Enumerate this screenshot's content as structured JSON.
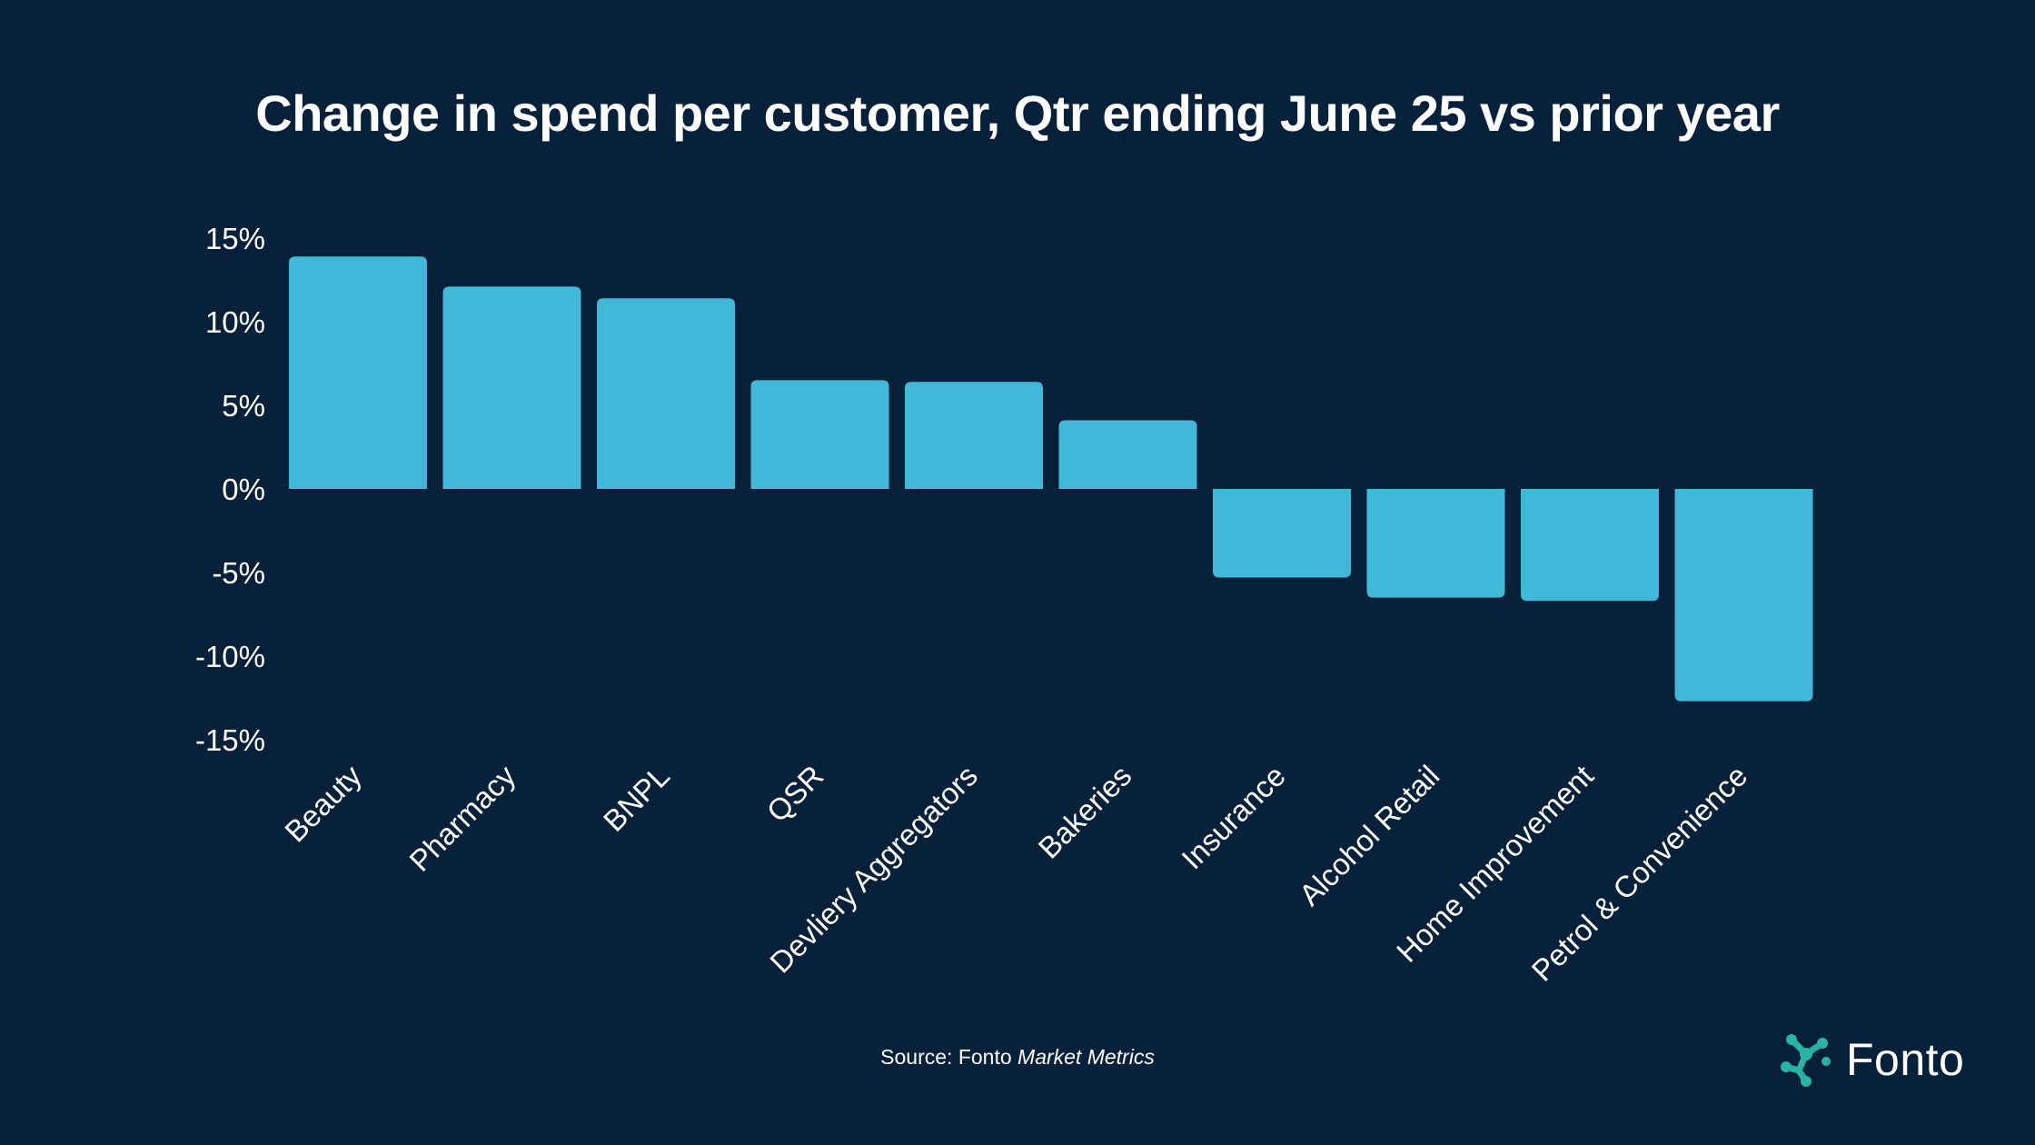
{
  "chart_data": {
    "type": "bar",
    "title": "Change in spend per customer, Qtr ending June 25 vs prior year",
    "categories": [
      "Beauty",
      "Pharmacy",
      "BNPL",
      "QSR",
      "Devliery Aggregators",
      "Bakeries",
      "Insurance",
      "Alcohol Retail",
      "Home Improvement",
      "Petrol & Convenience"
    ],
    "values": [
      13.9,
      12.1,
      11.4,
      6.5,
      6.4,
      4.1,
      -5.3,
      -6.5,
      -6.7,
      -12.7
    ],
    "ylim": [
      -15,
      15
    ],
    "yticks": [
      15,
      10,
      5,
      0,
      -5,
      -10,
      -15
    ],
    "ytick_labels": [
      "15%",
      "10%",
      "5%",
      "0%",
      "-5%",
      "-10%",
      "-15%"
    ],
    "xlabel": "",
    "ylabel": "",
    "grid": false,
    "bar_color": "#42b8d8"
  },
  "source": {
    "prefix": "Source: Fonto ",
    "italic": "Market Metrics"
  },
  "brand": {
    "name": "Fonto",
    "accent": "#2ab3a3"
  },
  "colors": {
    "background": "#08213a",
    "text": "#ffffff"
  }
}
